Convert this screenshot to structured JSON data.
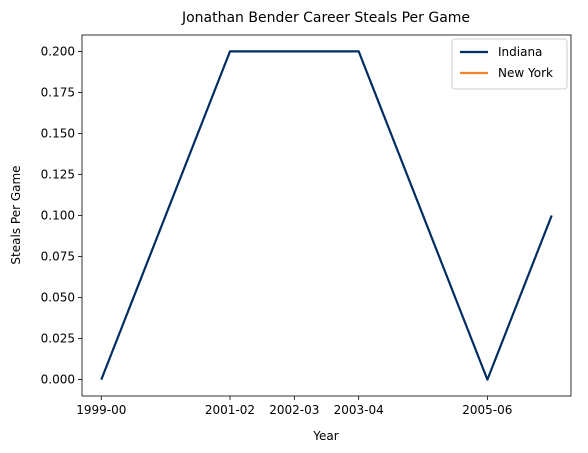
{
  "chart_data": {
    "type": "line",
    "title": "Jonathan Bender Career Steals Per Game",
    "xlabel": "Year",
    "ylabel": "Steals Per Game",
    "x_ticks": [
      "1999-00",
      "2001-02",
      "2002-03",
      "2003-04",
      "2005-06"
    ],
    "y_ticks": [
      "0.000",
      "0.025",
      "0.050",
      "0.075",
      "0.100",
      "0.125",
      "0.150",
      "0.175",
      "0.200"
    ],
    "ylim": [
      -0.01,
      0.21
    ],
    "grid": false,
    "legend_position": "top-right",
    "series": [
      {
        "name": "Indiana",
        "color": "#002D62",
        "points": [
          {
            "x": "1999-00",
            "y": 0.0
          },
          {
            "x": "2001-02",
            "y": 0.2
          },
          {
            "x": "2002-03",
            "y": 0.2
          },
          {
            "x": "2003-04",
            "y": 0.2
          },
          {
            "x": "2005-06",
            "y": 0.0
          },
          {
            "x": "2006-07",
            "y": 0.1
          }
        ]
      },
      {
        "name": "New York",
        "color": "#F58426",
        "points": []
      }
    ]
  }
}
